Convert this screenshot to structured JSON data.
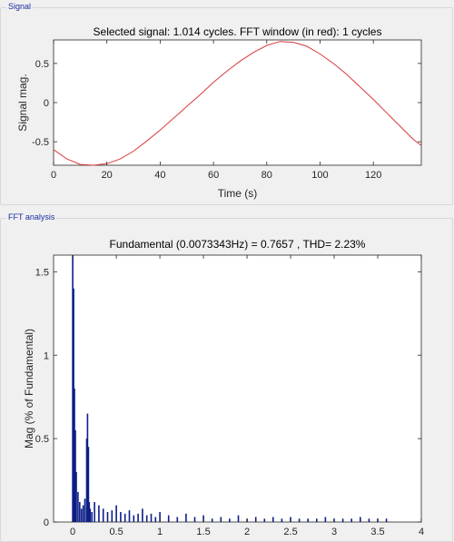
{
  "panels": {
    "signal": {
      "title": "Signal"
    },
    "fft": {
      "title": "FFT analysis"
    }
  },
  "colors": {
    "signal_line": "#d9393a",
    "fft_bars": "#0c1f86",
    "axes": "#262626",
    "panel_title": "#1a2ea0"
  },
  "chart_data": [
    {
      "type": "line",
      "title": "Selected signal: 1.014 cycles. FFT window (in red): 1 cycles",
      "xlabel": "Time (s)",
      "ylabel": "Signal mag.",
      "xlim": [
        0,
        138
      ],
      "ylim": [
        -0.8,
        0.8
      ],
      "xticks": [
        0,
        20,
        40,
        60,
        80,
        100,
        120
      ],
      "xtick_labels": [
        "0",
        "20",
        "40",
        "60",
        "80",
        "100",
        "120"
      ],
      "yticks": [
        -0.5,
        0,
        0.5
      ],
      "ytick_labels": [
        "-0.5",
        "0",
        "0.5"
      ],
      "series": [
        {
          "color": "#d9393a",
          "x": [
            0,
            5,
            10,
            15,
            20,
            25,
            30,
            35,
            40,
            45,
            50,
            55,
            60,
            65,
            70,
            75,
            80,
            85,
            90,
            95,
            100,
            105,
            110,
            115,
            120,
            125,
            130,
            135,
            138
          ],
          "y": [
            -0.6,
            -0.72,
            -0.79,
            -0.8,
            -0.78,
            -0.72,
            -0.62,
            -0.49,
            -0.35,
            -0.2,
            -0.05,
            0.1,
            0.26,
            0.4,
            0.53,
            0.64,
            0.73,
            0.78,
            0.77,
            0.72,
            0.62,
            0.5,
            0.36,
            0.2,
            0.04,
            -0.13,
            -0.3,
            -0.47,
            -0.55
          ]
        }
      ]
    },
    {
      "type": "bar",
      "title": "Fundamental (0.0073343Hz) = 0.7657 , THD= 2.23%",
      "xlabel": "",
      "ylabel": "Mag (% of Fundamental)",
      "xlim": [
        -0.22,
        4
      ],
      "ylim": [
        0,
        1.6
      ],
      "xticks": [
        0,
        0.5,
        1,
        1.5,
        2,
        2.5,
        3,
        3.5,
        4
      ],
      "xtick_labels": [
        "0",
        "0.5",
        "1",
        "1.5",
        "2",
        "2.5",
        "3",
        "3.5",
        "4"
      ],
      "yticks": [
        0,
        0.5,
        1,
        1.5
      ],
      "ytick_labels": [
        "0",
        "0.5",
        "1",
        "1.5"
      ],
      "series": [
        {
          "color": "#0c1f86",
          "x": [
            0,
            0.01,
            0.02,
            0.03,
            0.04,
            0.06,
            0.08,
            0.1,
            0.12,
            0.14,
            0.16,
            0.17,
            0.18,
            0.19,
            0.2,
            0.22,
            0.25,
            0.3,
            0.35,
            0.4,
            0.45,
            0.5,
            0.55,
            0.6,
            0.65,
            0.7,
            0.75,
            0.8,
            0.85,
            0.9,
            0.95,
            1.0,
            1.1,
            1.2,
            1.3,
            1.4,
            1.5,
            1.6,
            1.7,
            1.8,
            1.9,
            2.0,
            2.1,
            2.2,
            2.3,
            2.4,
            2.5,
            2.6,
            2.7,
            2.8,
            2.9,
            3.0,
            3.1,
            3.2,
            3.3,
            3.4,
            3.5,
            3.6
          ],
          "y": [
            1.6,
            1.4,
            0.8,
            0.55,
            0.3,
            0.18,
            0.12,
            0.08,
            0.1,
            0.14,
            0.5,
            0.65,
            0.45,
            0.12,
            0.08,
            0.06,
            0.12,
            0.1,
            0.08,
            0.06,
            0.07,
            0.1,
            0.06,
            0.05,
            0.07,
            0.04,
            0.05,
            0.08,
            0.04,
            0.05,
            0.03,
            0.06,
            0.04,
            0.03,
            0.05,
            0.03,
            0.04,
            0.02,
            0.03,
            0.02,
            0.04,
            0.02,
            0.03,
            0.02,
            0.03,
            0.02,
            0.03,
            0.02,
            0.02,
            0.02,
            0.03,
            0.02,
            0.02,
            0.02,
            0.03,
            0.02,
            0.02,
            0.02
          ]
        }
      ]
    }
  ]
}
